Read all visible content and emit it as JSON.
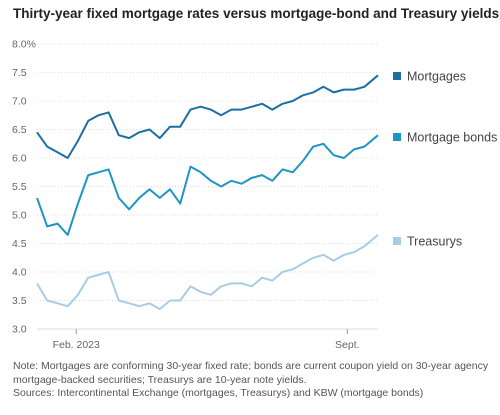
{
  "title": "Thirty-year fixed mortgage rates versus mortgage-bond and Treasury yields",
  "note_line1": "Note: Mortgages are conforming 30-year fixed rate; bonds are current coupon yield on 30-year agency",
  "note_line2": "mortgage-backed securities; Treasurys are 10-year note yields.",
  "source_line": "Sources: Intercontinental Exchange (mortgages, Treasurys) and KBW (mortgage bonds)",
  "chart_data": {
    "type": "line",
    "title": "Thirty-year fixed mortgage rates versus mortgage-bond and Treasury yields",
    "xlabel": "",
    "ylabel": "",
    "ylim": [
      3.0,
      8.0
    ],
    "yticks": [
      "8.0%",
      "7.5",
      "7.0",
      "6.5",
      "6.0",
      "5.5",
      "5.0",
      "4.5",
      "4.0",
      "3.5",
      "3.0"
    ],
    "xticks": [
      {
        "label": "Feb. 2023",
        "x": 0.115
      },
      {
        "label": "Sept.",
        "x": 0.91
      }
    ],
    "grid": true,
    "legend": "right",
    "series": [
      {
        "name": "Mortgages",
        "color": "#1a6fa3",
        "x": [
          0.0,
          0.03,
          0.06,
          0.09,
          0.12,
          0.15,
          0.18,
          0.21,
          0.24,
          0.27,
          0.3,
          0.33,
          0.36,
          0.39,
          0.42,
          0.45,
          0.48,
          0.51,
          0.54,
          0.57,
          0.6,
          0.63,
          0.66,
          0.69,
          0.72,
          0.75,
          0.78,
          0.81,
          0.84,
          0.87,
          0.9,
          0.93,
          0.96,
          1.0
        ],
        "values": [
          6.45,
          6.2,
          6.1,
          6.0,
          6.3,
          6.65,
          6.75,
          6.8,
          6.4,
          6.35,
          6.45,
          6.5,
          6.35,
          6.55,
          6.55,
          6.85,
          6.9,
          6.85,
          6.75,
          6.85,
          6.85,
          6.9,
          6.95,
          6.85,
          6.95,
          7.0,
          7.1,
          7.15,
          7.25,
          7.15,
          7.2,
          7.2,
          7.25,
          7.45
        ]
      },
      {
        "name": "Mortgage bonds",
        "color": "#1f95c4",
        "x": [
          0.0,
          0.03,
          0.06,
          0.09,
          0.12,
          0.15,
          0.18,
          0.21,
          0.24,
          0.27,
          0.3,
          0.33,
          0.36,
          0.39,
          0.42,
          0.45,
          0.48,
          0.51,
          0.54,
          0.57,
          0.6,
          0.63,
          0.66,
          0.69,
          0.72,
          0.75,
          0.78,
          0.81,
          0.84,
          0.87,
          0.9,
          0.93,
          0.96,
          1.0
        ],
        "values": [
          5.3,
          4.8,
          4.85,
          4.65,
          5.2,
          5.7,
          5.75,
          5.8,
          5.3,
          5.1,
          5.3,
          5.45,
          5.3,
          5.45,
          5.2,
          5.85,
          5.75,
          5.6,
          5.5,
          5.6,
          5.55,
          5.65,
          5.7,
          5.6,
          5.8,
          5.75,
          5.95,
          6.2,
          6.25,
          6.05,
          6.0,
          6.15,
          6.2,
          6.4
        ]
      },
      {
        "name": "Treasurys",
        "color": "#a7cde6",
        "x": [
          0.0,
          0.03,
          0.06,
          0.09,
          0.12,
          0.15,
          0.18,
          0.21,
          0.24,
          0.27,
          0.3,
          0.33,
          0.36,
          0.39,
          0.42,
          0.45,
          0.48,
          0.51,
          0.54,
          0.57,
          0.6,
          0.63,
          0.66,
          0.69,
          0.72,
          0.75,
          0.78,
          0.81,
          0.84,
          0.87,
          0.9,
          0.93,
          0.96,
          1.0
        ],
        "values": [
          3.8,
          3.5,
          3.45,
          3.4,
          3.6,
          3.9,
          3.95,
          4.0,
          3.5,
          3.45,
          3.4,
          3.45,
          3.35,
          3.5,
          3.5,
          3.75,
          3.65,
          3.6,
          3.75,
          3.8,
          3.8,
          3.75,
          3.9,
          3.85,
          4.0,
          4.05,
          4.15,
          4.25,
          4.3,
          4.2,
          4.3,
          4.35,
          4.45,
          4.65
        ]
      }
    ]
  }
}
